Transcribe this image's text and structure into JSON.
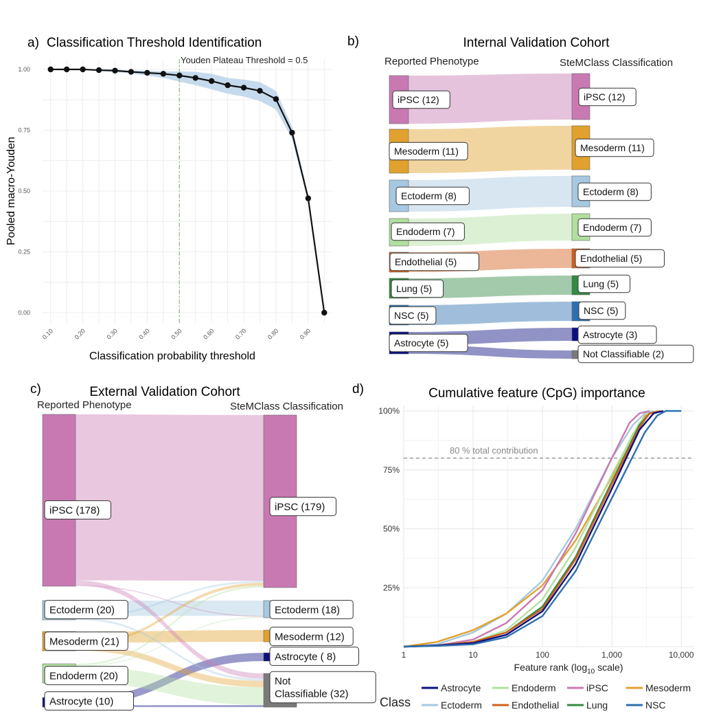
{
  "panels": {
    "a": {
      "letter": "a)",
      "title": "Classification Threshold Identification"
    },
    "b": {
      "letter": "b)",
      "title": "Internal Validation Cohort"
    },
    "c": {
      "letter": "c)",
      "title": "External Validation Cohort"
    },
    "d": {
      "letter": "d)",
      "title": "Cumulative feature (CpG) importance"
    }
  },
  "colors": {
    "Astrocyte": "#0b0f80",
    "Ectoderm": "#a6c8e0",
    "Endoderm": "#b2dfa0",
    "Endothelial": "#d2601a",
    "iPSC": "#c879b2",
    "Lung": "#338a42",
    "Mesoderm": "#e1a12e",
    "NSC": "#2c6fb0",
    "NotClassifiable": "#7a7a7a"
  },
  "chart_data": [
    {
      "id": "a",
      "type": "line",
      "title": "Classification Threshold Identification",
      "xlabel": "Classification probability threshold",
      "ylabel": "Pooled macro-Youden",
      "x": [
        0.1,
        0.15,
        0.2,
        0.25,
        0.3,
        0.35,
        0.4,
        0.45,
        0.5,
        0.55,
        0.6,
        0.65,
        0.7,
        0.75,
        0.8,
        0.85,
        0.9,
        0.95
      ],
      "y": [
        1.0,
        1.0,
        1.0,
        0.997,
        0.995,
        0.99,
        0.986,
        0.982,
        0.975,
        0.965,
        0.952,
        0.935,
        0.925,
        0.912,
        0.878,
        0.74,
        0.47,
        0.0
      ],
      "ci_low": [
        0.998,
        0.998,
        0.998,
        0.993,
        0.99,
        0.983,
        0.975,
        0.965,
        0.95,
        0.935,
        0.918,
        0.9,
        0.888,
        0.87,
        0.835,
        0.715,
        0.455,
        0.0
      ],
      "ci_high": [
        1.0,
        1.0,
        1.0,
        1.0,
        0.999,
        0.996,
        0.994,
        0.992,
        0.992,
        0.99,
        0.982,
        0.965,
        0.958,
        0.948,
        0.912,
        0.765,
        0.485,
        0.0
      ],
      "xticks": [
        "0.10",
        "0.20",
        "0.30",
        "0.40",
        "0.50",
        "0.60",
        "0.70",
        "0.80",
        "0.90"
      ],
      "yticks": [
        "0.00",
        "0.25",
        "0.50",
        "0.75",
        "1.00"
      ],
      "xlim": [
        0.075,
        0.975
      ],
      "ylim": [
        0,
        1
      ],
      "vline": 0.5,
      "vline_label": "Youden Plateau Threshold = 0.5"
    },
    {
      "id": "b",
      "type": "sankey",
      "title": "Internal Validation Cohort",
      "left_axis": "Reported Phenotype",
      "right_axis": "SteMClass Classification",
      "left": [
        {
          "key": "iPSC",
          "label": "iPSC (12)",
          "value": 12
        },
        {
          "key": "Mesoderm",
          "label": "Mesoderm (11)",
          "value": 11
        },
        {
          "key": "Ectoderm",
          "label": "Ectoderm (8)",
          "value": 8
        },
        {
          "key": "Endoderm",
          "label": "Endoderm (7)",
          "value": 7
        },
        {
          "key": "Endothelial",
          "label": "Endothelial (5)",
          "value": 5
        },
        {
          "key": "Lung",
          "label": "Lung (5)",
          "value": 5
        },
        {
          "key": "NSC",
          "label": "NSC (5)",
          "value": 5
        },
        {
          "key": "Astrocyte",
          "label": "Astrocyte (5)",
          "value": 5
        }
      ],
      "right": [
        {
          "key": "iPSC",
          "label": "iPSC (12)",
          "value": 12
        },
        {
          "key": "Mesoderm",
          "label": "Mesoderm (11)",
          "value": 11
        },
        {
          "key": "Ectoderm",
          "label": "Ectoderm (8)",
          "value": 8
        },
        {
          "key": "Endoderm",
          "label": "Endoderm (7)",
          "value": 7
        },
        {
          "key": "Endothelial",
          "label": "Endothelial (5)",
          "value": 5
        },
        {
          "key": "Lung",
          "label": "Lung (5)",
          "value": 5
        },
        {
          "key": "NSC",
          "label": "NSC (5)",
          "value": 5
        },
        {
          "key": "Astrocyte",
          "label": "Astrocyte (3)",
          "value": 3
        },
        {
          "key": "NotClassifiable",
          "label": "Not Classifiable (2)",
          "value": 2
        }
      ],
      "flows": [
        {
          "from": "iPSC",
          "to": "iPSC",
          "value": 12
        },
        {
          "from": "Mesoderm",
          "to": "Mesoderm",
          "value": 11
        },
        {
          "from": "Ectoderm",
          "to": "Ectoderm",
          "value": 8
        },
        {
          "from": "Endoderm",
          "to": "Endoderm",
          "value": 7
        },
        {
          "from": "Endothelial",
          "to": "Endothelial",
          "value": 5
        },
        {
          "from": "Lung",
          "to": "Lung",
          "value": 5
        },
        {
          "from": "NSC",
          "to": "NSC",
          "value": 5
        },
        {
          "from": "Astrocyte",
          "to": "Astrocyte",
          "value": 3
        },
        {
          "from": "Astrocyte",
          "to": "NotClassifiable",
          "value": 2
        }
      ]
    },
    {
      "id": "c",
      "type": "sankey",
      "title": "External Validation Cohort",
      "left_axis": "Reported Phenotype",
      "right_axis": "SteMClass Classification",
      "left": [
        {
          "key": "iPSC",
          "label": "iPSC (178)",
          "value": 178
        },
        {
          "key": "Ectoderm",
          "label": "Ectoderm (20)",
          "value": 20
        },
        {
          "key": "Mesoderm",
          "label": "Mesoderm (21)",
          "value": 21
        },
        {
          "key": "Endoderm",
          "label": "Endoderm (20)",
          "value": 20
        },
        {
          "key": "Astrocyte",
          "label": "Astrocyte (10)",
          "value": 10
        }
      ],
      "right": [
        {
          "key": "iPSC",
          "label": "iPSC (179)",
          "value": 179
        },
        {
          "key": "Ectoderm",
          "label": "Ectoderm (18)",
          "value": 18
        },
        {
          "key": "Mesoderm",
          "label": "Mesoderm (12)",
          "value": 12
        },
        {
          "key": "Astrocyte",
          "label": "Astrocyte ( 8)",
          "value": 8
        },
        {
          "key": "NotClassifiable",
          "label": "Not Classifiable (32)",
          "value": 32
        }
      ],
      "flows": [
        {
          "from": "iPSC",
          "to": "iPSC",
          "value": 172
        },
        {
          "from": "iPSC",
          "to": "NotClassifiable",
          "value": 5
        },
        {
          "from": "iPSC",
          "to": "Ectoderm",
          "value": 1
        },
        {
          "from": "Ectoderm",
          "to": "Ectoderm",
          "value": 16
        },
        {
          "from": "Ectoderm",
          "to": "iPSC",
          "value": 2
        },
        {
          "from": "Ectoderm",
          "to": "NotClassifiable",
          "value": 2
        },
        {
          "from": "Mesoderm",
          "to": "Mesoderm",
          "value": 12
        },
        {
          "from": "Mesoderm",
          "to": "iPSC",
          "value": 3
        },
        {
          "from": "Mesoderm",
          "to": "NotClassifiable",
          "value": 6
        },
        {
          "from": "Endoderm",
          "to": "iPSC",
          "value": 2
        },
        {
          "from": "Endoderm",
          "to": "Ectoderm",
          "value": 1
        },
        {
          "from": "Endoderm",
          "to": "NotClassifiable",
          "value": 17
        },
        {
          "from": "Astrocyte",
          "to": "Astrocyte",
          "value": 8
        },
        {
          "from": "Astrocyte",
          "to": "NotClassifiable",
          "value": 2
        }
      ]
    },
    {
      "id": "d",
      "type": "line",
      "title": "Cumulative feature (CpG) importance",
      "xlabel": "Feature rank (log10 scale)",
      "xlabel_main": "Feature rank (log",
      "xlabel_sub": "10",
      "xlabel_tail": " scale)",
      "xscale": "log10",
      "xlim": [
        1,
        15000
      ],
      "ylim": [
        0,
        100
      ],
      "xticks": [
        {
          "v": 1,
          "label": "1"
        },
        {
          "v": 10,
          "label": "10"
        },
        {
          "v": 100,
          "label": "100"
        },
        {
          "v": 1000,
          "label": "1,000"
        },
        {
          "v": 10000,
          "label": "10,000"
        }
      ],
      "yticks": [
        {
          "v": 25,
          "label": "25%"
        },
        {
          "v": 50,
          "label": "50%"
        },
        {
          "v": 75,
          "label": "75%"
        },
        {
          "v": 100,
          "label": "100%"
        }
      ],
      "hline": 80,
      "hline_label": "80 % total contribution",
      "legend_title": "Class",
      "legend": [
        "Astrocyte",
        "Ectoderm",
        "Endoderm",
        "Endothelial",
        "iPSC",
        "Lung",
        "Mesoderm",
        "NSC"
      ],
      "series": [
        {
          "name": "Ectoderm",
          "x": [
            1,
            3,
            10,
            30,
            100,
            300,
            1000,
            2000,
            3000,
            4000
          ],
          "y": [
            0,
            1,
            6,
            14,
            28,
            50,
            80,
            94,
            99,
            100
          ]
        },
        {
          "name": "Mesoderm",
          "x": [
            1,
            3,
            10,
            30,
            100,
            300,
            1000,
            2000,
            3000,
            4500
          ],
          "y": [
            0,
            2,
            7,
            14,
            26,
            45,
            72,
            90,
            98,
            100
          ]
        },
        {
          "name": "iPSC",
          "x": [
            1,
            3,
            10,
            30,
            100,
            300,
            1000,
            1800,
            2500,
            3500
          ],
          "y": [
            0,
            0.5,
            3,
            10,
            24,
            48,
            80,
            95,
            99,
            100
          ]
        },
        {
          "name": "Endoderm",
          "x": [
            1,
            3,
            10,
            30,
            100,
            300,
            1000,
            2500,
            3500,
            4500
          ],
          "y": [
            0,
            0.5,
            2,
            7,
            20,
            42,
            73,
            95,
            99,
            100
          ]
        },
        {
          "name": "Lung",
          "x": [
            1,
            3,
            10,
            30,
            100,
            300,
            1000,
            2500,
            3500,
            5000
          ],
          "y": [
            0,
            0.5,
            2,
            6,
            17,
            38,
            70,
            94,
            99,
            100
          ]
        },
        {
          "name": "Endothelial",
          "x": [
            1,
            3,
            10,
            30,
            100,
            300,
            1000,
            2500,
            3500,
            5000
          ],
          "y": [
            0,
            0.5,
            2,
            6,
            16,
            37,
            69,
            93,
            99,
            100
          ]
        },
        {
          "name": "Astrocyte",
          "x": [
            1,
            3,
            10,
            30,
            100,
            300,
            1000,
            2500,
            4000,
            5500
          ],
          "y": [
            0,
            0.5,
            1.5,
            5,
            15,
            35,
            67,
            92,
            99,
            100
          ]
        },
        {
          "name": "NSC",
          "x": [
            1,
            3,
            10,
            30,
            100,
            300,
            1000,
            3000,
            4500,
            6000,
            10000
          ],
          "y": [
            0,
            0.3,
            1,
            4,
            13,
            32,
            63,
            91,
            98,
            100,
            100
          ]
        }
      ]
    }
  ]
}
